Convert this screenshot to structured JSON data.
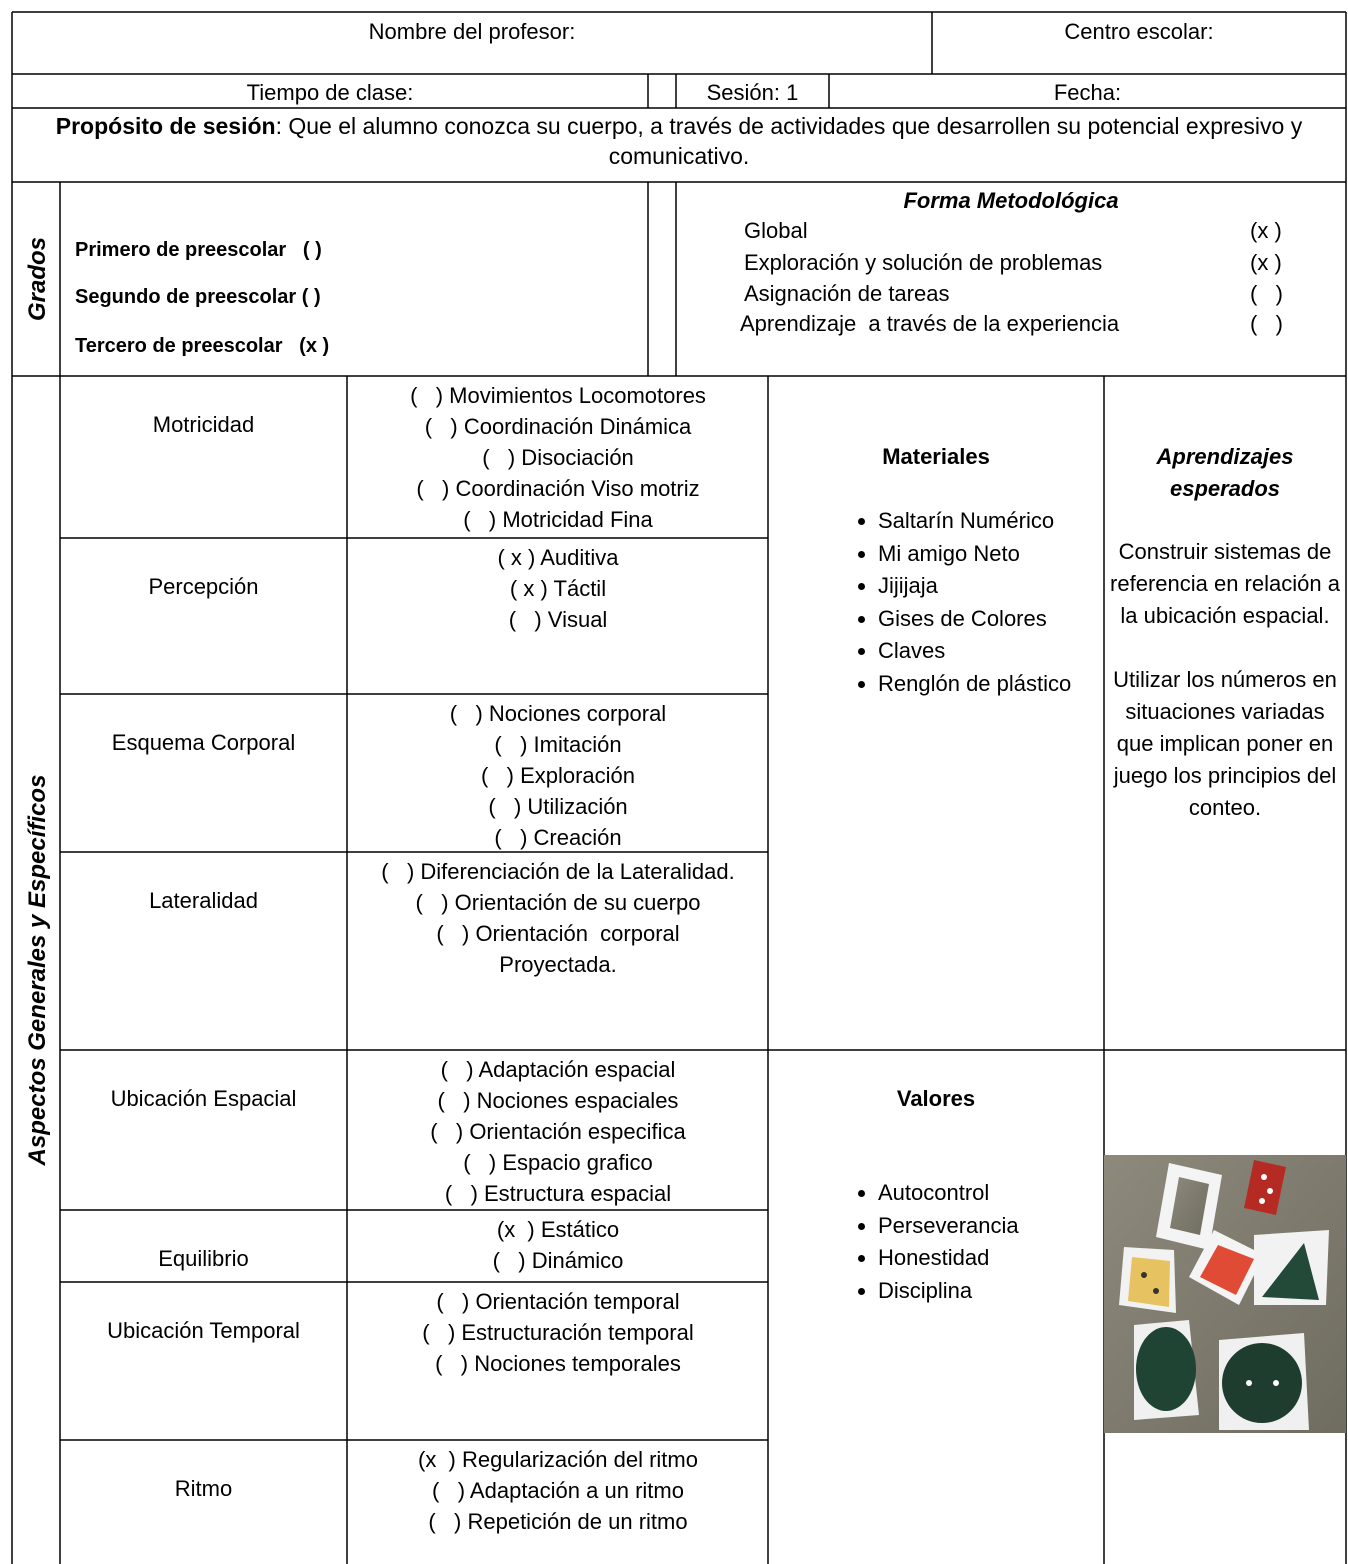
{
  "header": {
    "teacher_label": "Nombre del profesor:",
    "school_label": "Centro escolar:",
    "time_label": "Tiempo de clase:",
    "session": "Sesión: 1",
    "date_label": "Fecha:"
  },
  "purpose": {
    "label": "Propósito de sesión",
    "text": ": Que el alumno conozca su cuerpo, a través de actividades que desarrollen su potencial expresivo y comunicativo."
  },
  "grades": {
    "title": "Grados",
    "items": [
      "Primero de preescolar   ( )",
      "Segundo de preescolar ( )",
      "Tercero de preescolar   (x )"
    ]
  },
  "methodology": {
    "title": "Forma Metodológica",
    "items": [
      {
        "name": "Global",
        "mark": "(x )"
      },
      {
        "name": "Exploración y solución de problemas",
        "mark": "(x )"
      },
      {
        "name": "Asignación de tareas",
        "mark": "(   )"
      },
      {
        "name": "Aprendizaje  a través de la experiencia",
        "mark": "(   )"
      }
    ]
  },
  "aspects": {
    "title": "Aspectos Generales y Específicos",
    "rows": [
      {
        "name": "Motricidad",
        "options": [
          "(   ) Movimientos Locomotores",
          "(   ) Coordinación Dinámica",
          "(   ) Disociación",
          "(   ) Coordinación Viso motriz",
          "(   ) Motricidad Fina"
        ]
      },
      {
        "name": "Percepción",
        "options": [
          "( x ) Auditiva",
          "( x ) Táctil",
          "(   ) Visual"
        ]
      },
      {
        "name": "Esquema Corporal",
        "options": [
          "(   ) Nociones corporal",
          "(   ) Imitación",
          "(   ) Exploración",
          "(   ) Utilización",
          "(   ) Creación"
        ]
      },
      {
        "name": "Lateralidad",
        "options": [
          "(   ) Diferenciación de la Lateralidad.",
          "(   ) Orientación de su cuerpo",
          "(   ) Orientación  corporal Proyectada."
        ]
      },
      {
        "name": "Ubicación Espacial",
        "options": [
          "(   ) Adaptación espacial",
          "(   ) Nociones espaciales",
          "(   ) Orientación especifica",
          "(   ) Espacio grafico",
          "(   ) Estructura espacial"
        ]
      },
      {
        "name": "Equilibrio",
        "options": [
          "(x  ) Estático",
          "(   ) Dinámico"
        ]
      },
      {
        "name": "Ubicación Temporal",
        "options": [
          "(   ) Orientación temporal",
          "(   ) Estructuración temporal",
          "(   ) Nociones temporales"
        ]
      },
      {
        "name": "Ritmo",
        "options": [
          "(x  ) Regularización del ritmo",
          "(   ) Adaptación a un ritmo",
          "(   ) Repetición de un ritmo"
        ]
      }
    ]
  },
  "materials": {
    "title": "Materiales",
    "items": [
      "Saltarín Numérico",
      "Mi amigo Neto",
      "Jijijaja",
      "Gises de Colores",
      "Claves",
      "Renglón de plástico"
    ]
  },
  "learning": {
    "title": "Aprendizajes esperados",
    "paragraphs": [
      "Construir sistemas de referencia en relación a la ubicación espacial.",
      "Utilizar los números en situaciones variadas que implican poner en juego los principios del conteo."
    ]
  },
  "values": {
    "title": "Valores",
    "items": [
      "Autocontrol",
      "Perseverancia",
      "Honestidad",
      "Disciplina"
    ]
  }
}
